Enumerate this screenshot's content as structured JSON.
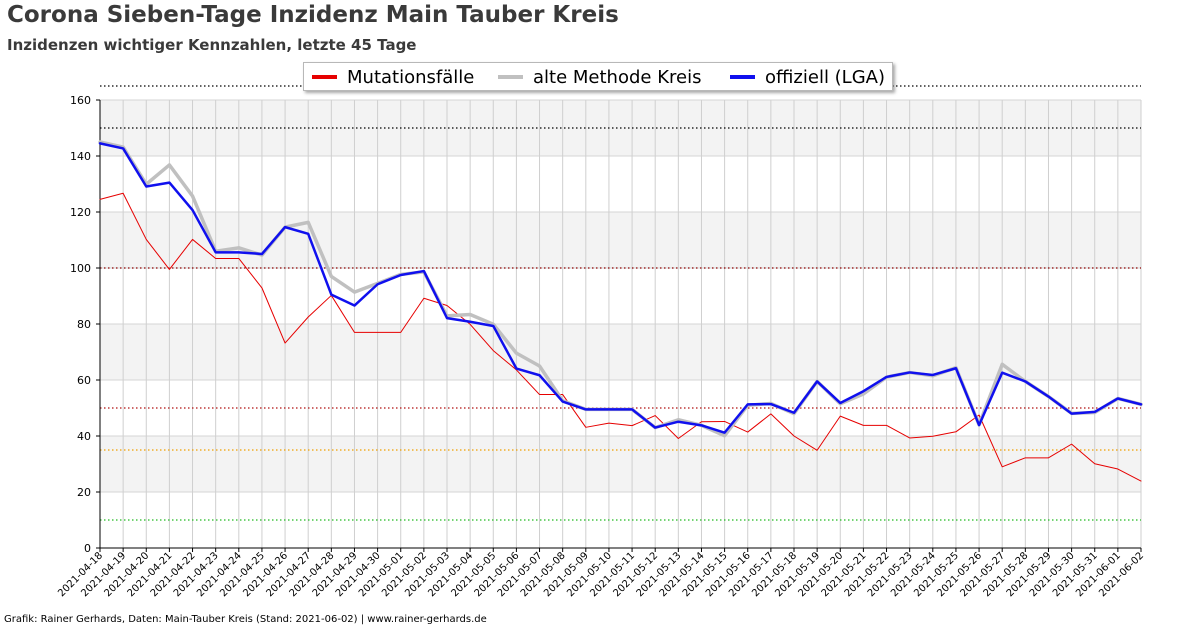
{
  "header": {
    "title": "Corona Sieben-Tage Inzidenz Main Tauber Kreis",
    "subtitle": "Inzidenzen wichtiger Kennzahlen, letzte 45 Tage"
  },
  "footer": {
    "credit": "Grafik: Rainer Gerhards, Daten: Main-Tauber Kreis (Stand: 2021-06-02) | www.rainer-gerhards.de"
  },
  "colors": {
    "mutation": "#e60000",
    "old_method": "#c0c0c0",
    "official": "#1010ee",
    "ref_150": "#000000",
    "ref_100": "#8b0000",
    "ref_50": "#b01010",
    "ref_35": "#f0a000",
    "ref_10": "#22bb22"
  },
  "chart_data": {
    "type": "line",
    "title": "Corona Sieben-Tage Inzidenz Main Tauber Kreis",
    "subtitle": "Inzidenzen wichtiger Kennzahlen, letzte 45 Tage",
    "xlabel": "",
    "ylabel": "",
    "ylim": [
      0,
      160
    ],
    "yticks": [
      0,
      20,
      40,
      60,
      80,
      100,
      120,
      140,
      160
    ],
    "grid": true,
    "legend_position": "top-center",
    "x": [
      "2021-04-18",
      "2021-04-19",
      "2021-04-20",
      "2021-04-21",
      "2021-04-22",
      "2021-04-23",
      "2021-04-24",
      "2021-04-25",
      "2021-04-26",
      "2021-04-27",
      "2021-04-28",
      "2021-04-29",
      "2021-04-30",
      "2021-05-01",
      "2021-05-02",
      "2021-05-03",
      "2021-05-04",
      "2021-05-05",
      "2021-05-06",
      "2021-05-07",
      "2021-05-08",
      "2021-05-09",
      "2021-05-10",
      "2021-05-11",
      "2021-05-12",
      "2021-05-13",
      "2021-05-14",
      "2021-05-15",
      "2021-05-16",
      "2021-05-17",
      "2021-05-18",
      "2021-05-19",
      "2021-05-20",
      "2021-05-21",
      "2021-05-22",
      "2021-05-23",
      "2021-05-24",
      "2021-05-25",
      "2021-05-26",
      "2021-05-27",
      "2021-05-28",
      "2021-05-29",
      "2021-05-30",
      "2021-05-31",
      "2021-06-01",
      "2021-06-02"
    ],
    "series": [
      {
        "name": "Mutationsfälle",
        "color": "#e60000",
        "values": [
          124.5,
          126.7,
          110.2,
          99.5,
          110.2,
          103.4,
          103.4,
          92.9,
          73.2,
          82.5,
          90.2,
          77.0,
          77.0,
          77.0,
          89.2,
          86.6,
          79.9,
          70.5,
          63.6,
          54.8,
          54.8,
          43.1,
          44.6,
          43.7,
          47.3,
          39.1,
          45.1,
          45.2,
          41.4,
          47.9,
          40.0,
          34.9,
          47.1,
          43.8,
          43.8,
          39.3,
          39.9,
          41.5,
          47.5,
          29.0,
          32.2,
          32.2,
          37.1,
          30.1,
          28.2,
          23.9
        ]
      },
      {
        "name": "alte Methode Kreis",
        "color": "#c0c0c0",
        "values": [
          145.0,
          143.2,
          129.9,
          136.8,
          125.7,
          106.0,
          107.2,
          104.6,
          114.6,
          116.3,
          97.0,
          91.4,
          94.5,
          97.7,
          98.6,
          82.9,
          83.4,
          79.9,
          69.6,
          65.0,
          52.6,
          49.5,
          49.5,
          49.5,
          43.0,
          45.8,
          43.8,
          40.1,
          51.0,
          51.6,
          48.0,
          59.5,
          51.5,
          55.0,
          61.0,
          62.7,
          61.5,
          64.4,
          44.0,
          65.6,
          59.5,
          54.1,
          48.1,
          48.4,
          53.4,
          51.3
        ]
      },
      {
        "name": "offiziell (LGA)",
        "color": "#1010ee",
        "values": [
          144.5,
          142.7,
          129.1,
          130.5,
          120.7,
          105.6,
          105.6,
          105.0,
          114.6,
          112.2,
          90.5,
          86.6,
          94.2,
          97.5,
          98.9,
          82.1,
          80.8,
          79.3,
          64.1,
          61.7,
          52.3,
          49.5,
          49.5,
          49.5,
          43.0,
          45.1,
          43.8,
          41.2,
          51.3,
          51.4,
          48.3,
          59.5,
          51.8,
          56.0,
          61.1,
          62.7,
          61.8,
          64.2,
          43.9,
          62.6,
          59.5,
          54.1,
          48.0,
          48.6,
          53.4,
          51.3
        ]
      }
    ],
    "reference_lines": [
      {
        "value": 150,
        "color": "#000000"
      },
      {
        "value": 100,
        "color": "#8b0000"
      },
      {
        "value": 50,
        "color": "#b01010"
      },
      {
        "value": 35,
        "color": "#f0a000"
      },
      {
        "value": 10,
        "color": "#22bb22"
      }
    ]
  }
}
